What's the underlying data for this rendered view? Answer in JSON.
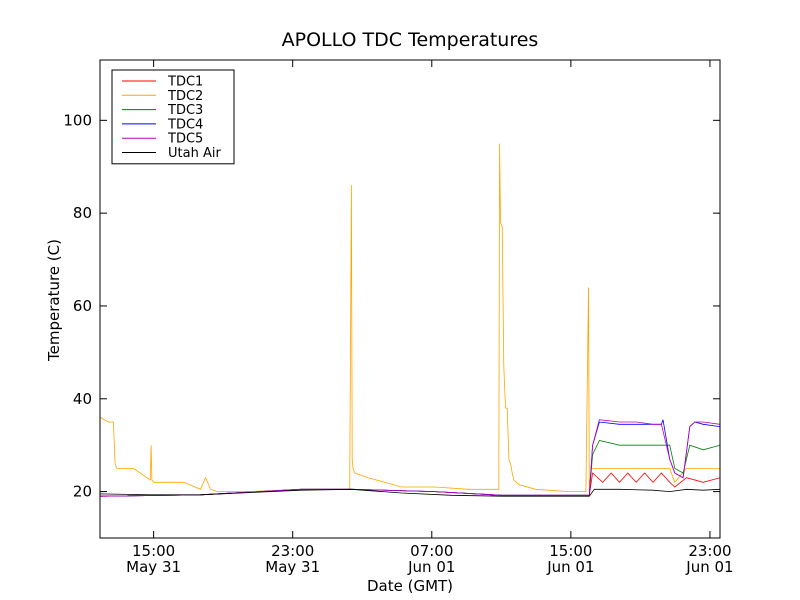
{
  "chart_data": {
    "type": "line",
    "title": "APOLLO TDC Temperatures",
    "xlabel": "Date (GMT)",
    "ylabel": "Temperature (C)",
    "x_unit": "hours since May 31 11:00 GMT",
    "xlim": [
      0,
      37
    ],
    "ylim": [
      10,
      113
    ],
    "yticks": [
      20,
      40,
      60,
      80,
      100
    ],
    "xticks": [
      {
        "x": 3.2,
        "time": "15:00",
        "date": "May 31"
      },
      {
        "x": 11.5,
        "time": "23:00",
        "date": "May 31"
      },
      {
        "x": 19.8,
        "time": "07:00",
        "date": "Jun 01"
      },
      {
        "x": 28.1,
        "time": "15:00",
        "date": "Jun 01"
      },
      {
        "x": 36.4,
        "time": "23:00",
        "date": "Jun 01"
      }
    ],
    "legend": {
      "position": "top-left"
    },
    "series": [
      {
        "name": "TDC1",
        "color": "#ff0000",
        "x": [
          0,
          6,
          12,
          15,
          20,
          24,
          29.2,
          29.4,
          30,
          30.5,
          31,
          31.5,
          32,
          32.5,
          33,
          33.5,
          34,
          34.3,
          35,
          36,
          37
        ],
        "y": [
          19,
          19.3,
          20.5,
          20.5,
          20,
          19.2,
          19.2,
          24,
          22,
          24,
          22,
          24,
          22,
          24,
          22,
          24,
          22,
          21,
          23,
          22,
          23
        ]
      },
      {
        "name": "TDC2",
        "color": "#ffa500",
        "x": [
          0,
          0.5,
          0.8,
          0.9,
          1.0,
          1.5,
          2.0,
          3.0,
          3.05,
          3.1,
          3.2,
          5.0,
          6.0,
          6.3,
          6.6,
          7.0,
          9.0,
          12.0,
          14.9,
          15.0,
          15.05,
          15.1,
          15.2,
          16.0,
          18.0,
          20.0,
          22.0,
          23.8,
          23.85,
          23.9,
          24.0,
          24.1,
          24.2,
          24.3,
          24.4,
          24.5,
          24.6,
          24.7,
          25.0,
          26.0,
          28.0,
          29.0,
          29.15,
          29.2,
          29.3,
          30,
          31,
          32,
          33,
          34,
          34.3,
          35,
          36,
          37
        ],
        "y": [
          36,
          35,
          35,
          26,
          25,
          25,
          25,
          22.5,
          30,
          22.5,
          22,
          22,
          20.5,
          23,
          20.5,
          20,
          20,
          20.5,
          20.5,
          86,
          27,
          25,
          24,
          23,
          21,
          21,
          20.5,
          20.5,
          95,
          78,
          77,
          47,
          38,
          38,
          27,
          26,
          24,
          22.5,
          21.5,
          20.5,
          20,
          20,
          64,
          20,
          25,
          25,
          25,
          25,
          25,
          25,
          22,
          25,
          25,
          25
        ]
      },
      {
        "name": "TDC3",
        "color": "#008000",
        "x": [
          0,
          6,
          12,
          15,
          20,
          24,
          29.2,
          29.4,
          29.8,
          31,
          32,
          33,
          34,
          34.3,
          34.8,
          35.2,
          36,
          37
        ],
        "y": [
          19,
          19.3,
          20.5,
          20.5,
          20,
          19.2,
          19.2,
          28,
          31,
          30,
          30,
          30,
          30,
          25,
          24,
          30,
          29,
          30
        ]
      },
      {
        "name": "TDC4",
        "color": "#0000ff",
        "x": [
          0,
          6,
          12,
          15,
          20,
          24,
          29.2,
          29.4,
          29.8,
          31,
          32,
          33,
          33.5,
          33.6,
          34.0,
          34.3,
          34.8,
          35.2,
          35.5,
          36,
          37
        ],
        "y": [
          19,
          19.3,
          20.5,
          20.5,
          20,
          19.2,
          19.2,
          30,
          35,
          34.5,
          34.5,
          34.5,
          34.5,
          35.5,
          27,
          24,
          23,
          34,
          35,
          34.5,
          34
        ]
      },
      {
        "name": "TDC5",
        "color": "#bf00bf",
        "x": [
          0,
          6,
          12,
          15,
          20,
          24,
          29.2,
          29.4,
          29.8,
          31,
          32,
          33,
          33.5,
          34.0,
          34.3,
          34.8,
          35.2,
          35.5,
          36,
          37
        ],
        "y": [
          19,
          19.3,
          20.5,
          20.5,
          20,
          19.2,
          19.2,
          30,
          35.5,
          35,
          35,
          34.5,
          34.5,
          27,
          24,
          23,
          34,
          35,
          35,
          34.5
        ]
      },
      {
        "name": "Utah Air",
        "color": "#000000",
        "x": [
          0,
          3,
          6,
          9,
          12,
          15,
          18,
          21,
          24,
          29.2,
          29.5,
          31,
          33,
          34,
          35,
          36,
          37
        ],
        "y": [
          19.5,
          19.3,
          19.3,
          19.8,
          20.3,
          20.5,
          19.7,
          19.2,
          19,
          19,
          20.5,
          20.5,
          20.3,
          20,
          20.5,
          20.3,
          20.5
        ]
      }
    ]
  }
}
